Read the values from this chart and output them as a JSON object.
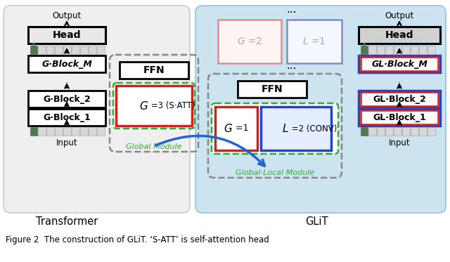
{
  "caption": "Figure 2  The construction of GLiT. ‘S-ATT’ is self-attention head",
  "transformer_label": "Transformer",
  "glit_label": "GLiT",
  "color_red": "#cc2222",
  "color_blue": "#2244cc",
  "color_green_dashed": "#33aa33",
  "color_gray_dashed": "#888888",
  "color_green_arrow": "#336633",
  "color_blue_arrow": "#2266cc",
  "color_patch_green": "#4a7a4a",
  "color_bg_transformer": "#f0f0f0",
  "color_bg_glit": "#cce4f0"
}
